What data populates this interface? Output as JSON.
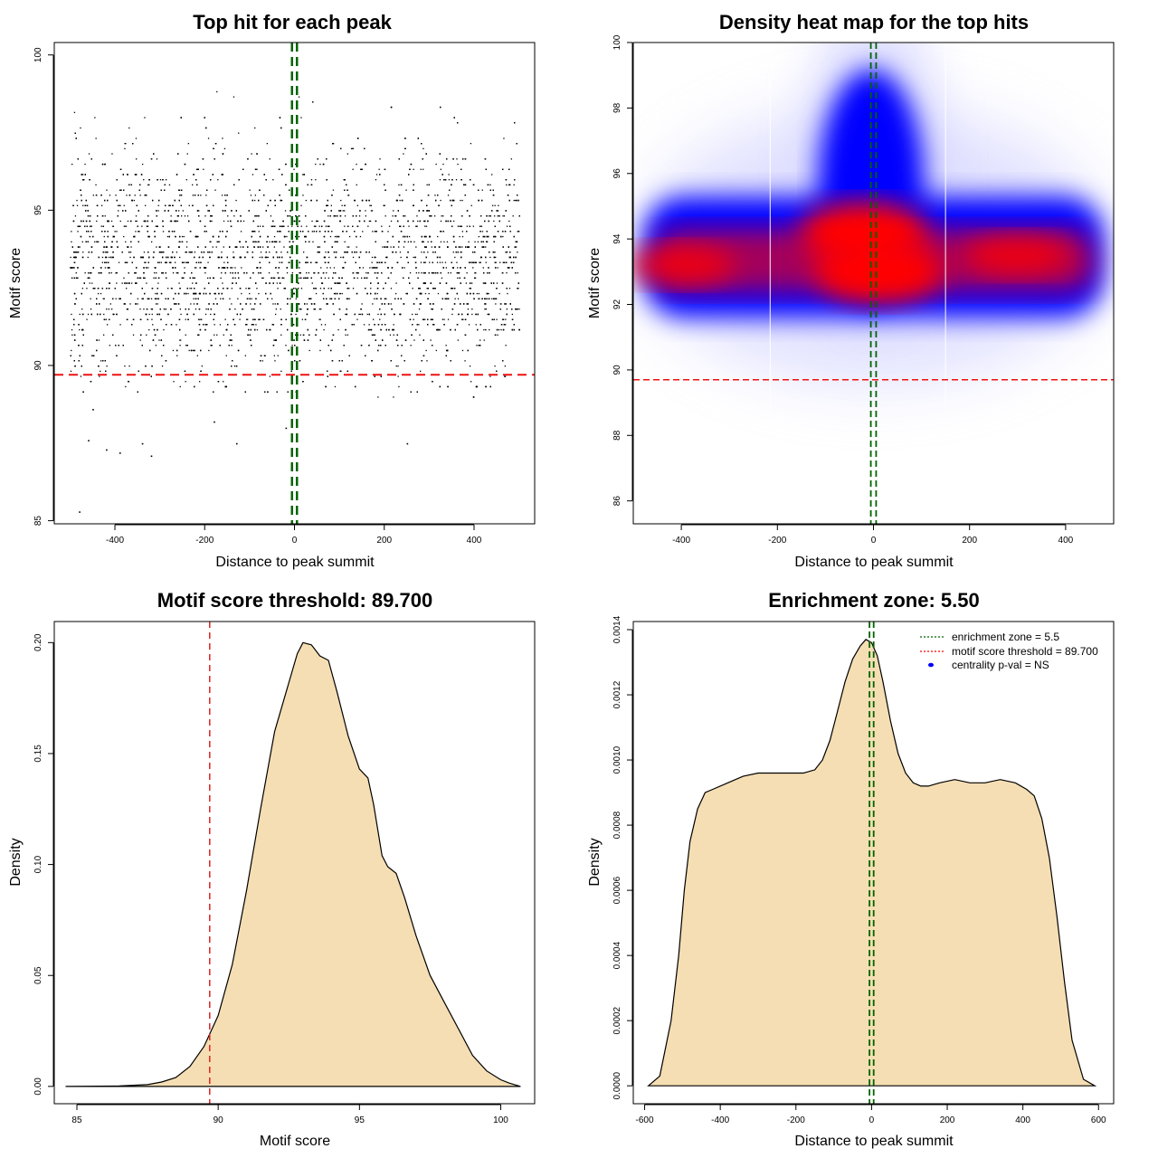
{
  "chart_data": [
    {
      "type": "scatter",
      "title": "Top hit for each peak",
      "xlabel": "Distance to peak summit",
      "ylabel": "Motif score",
      "xlim": [
        -535,
        535
      ],
      "ylim": [
        84.9,
        100.4
      ],
      "xticks": [
        "-400",
        "-200",
        "0",
        "200",
        "400"
      ],
      "xtick_values": [
        -400,
        -200,
        0,
        200,
        400
      ],
      "yticks": [
        "85",
        "90",
        "95",
        "100"
      ],
      "ytick_values": [
        85,
        90,
        95,
        100
      ],
      "points_approx": {
        "x_range": [
          -500,
          500
        ],
        "score_peak": 93.3,
        "score_range_dense": [
          88.8,
          100
        ],
        "outliers": [
          [
            -480,
            85.3
          ],
          [
            -460,
            87.6
          ],
          [
            -450,
            88.6
          ],
          [
            -420,
            87.3
          ],
          [
            -390,
            87.2
          ],
          [
            -340,
            87.5
          ],
          [
            -320,
            87.1
          ],
          [
            -180,
            88.2
          ],
          [
            -130,
            87.5
          ],
          [
            -20,
            88.0
          ],
          [
            250,
            87.5
          ]
        ]
      },
      "vlines": [
        -5.5,
        5.5
      ],
      "hline": 89.7
    },
    {
      "type": "heatmap",
      "title": "Density heat map for the top hits",
      "xlabel": "Distance to peak summit",
      "ylabel": "Motif score",
      "xlim": [
        -500,
        500
      ],
      "ylim": [
        85.3,
        100.0
      ],
      "xticks": [
        "-400",
        "-200",
        "0",
        "200",
        "400"
      ],
      "xtick_values": [
        -400,
        -200,
        0,
        200,
        400
      ],
      "yticks": [
        "86",
        "88",
        "90",
        "92",
        "94",
        "96",
        "98",
        "100"
      ],
      "ytick_values": [
        86,
        88,
        90,
        92,
        94,
        96,
        98,
        100
      ],
      "density_peaks": [
        [
          -20,
          94.2
        ],
        [
          10,
          93.0
        ],
        [
          -400,
          93.2
        ],
        [
          300,
          93.5
        ]
      ],
      "colors": [
        "#ffffff",
        "#0000ff",
        "#ff0000"
      ],
      "vlines": [
        -5.5,
        5.5
      ],
      "hline": 89.7
    },
    {
      "type": "area",
      "title": "Motif score threshold: 89.700",
      "xlabel": "Motif score",
      "ylabel": "Density",
      "xlim": [
        84.2,
        101.2
      ],
      "ylim": [
        -0.0078,
        0.2095
      ],
      "xticks": [
        "85",
        "90",
        "95",
        "100"
      ],
      "xtick_values": [
        85,
        90,
        95,
        100
      ],
      "yticks": [
        "0.00",
        "0.05",
        "0.10",
        "0.15",
        "0.20"
      ],
      "ytick_values": [
        0,
        0.05,
        0.1,
        0.15,
        0.2
      ],
      "x": [
        84.6,
        86.5,
        87.5,
        88.0,
        88.5,
        89.0,
        89.5,
        90.0,
        90.5,
        91.0,
        91.5,
        92.0,
        92.5,
        92.8,
        93.0,
        93.3,
        93.6,
        93.9,
        94.2,
        94.6,
        95.0,
        95.3,
        95.5,
        95.8,
        96.0,
        96.3,
        96.6,
        97.0,
        97.5,
        98.0,
        98.5,
        99.0,
        99.5,
        100.0,
        100.3,
        100.7
      ],
      "values": [
        0.0,
        0.0002,
        0.0008,
        0.002,
        0.004,
        0.009,
        0.018,
        0.032,
        0.055,
        0.088,
        0.125,
        0.16,
        0.182,
        0.195,
        0.2,
        0.199,
        0.194,
        0.192,
        0.178,
        0.158,
        0.143,
        0.139,
        0.127,
        0.104,
        0.099,
        0.096,
        0.085,
        0.068,
        0.05,
        0.038,
        0.026,
        0.014,
        0.007,
        0.003,
        0.0015,
        0.0
      ],
      "fill": "#F5DEB3",
      "vline": 89.7
    },
    {
      "type": "area",
      "title": "Enrichment zone: 5.50",
      "xlabel": "Distance to peak summit",
      "ylabel": "Density",
      "xlim": [
        -630,
        640
      ],
      "ylim": [
        -5.5e-05,
        0.001425
      ],
      "xticks": [
        "-600",
        "-400",
        "-200",
        "0",
        "200",
        "400",
        "600"
      ],
      "xtick_values": [
        -600,
        -400,
        -200,
        0,
        200,
        400,
        600
      ],
      "yticks": [
        "0.0000",
        "0.0002",
        "0.0004",
        "0.0006",
        "0.0008",
        "0.0010",
        "0.0012",
        "0.0014"
      ],
      "ytick_values": [
        0,
        0.0002,
        0.0004,
        0.0006,
        0.0008,
        0.001,
        0.0012,
        0.0014
      ],
      "x": [
        -590,
        -560,
        -530,
        -510,
        -495,
        -480,
        -460,
        -440,
        -420,
        -380,
        -340,
        -300,
        -260,
        -220,
        -180,
        -150,
        -130,
        -110,
        -90,
        -70,
        -50,
        -30,
        -15,
        0,
        15,
        30,
        50,
        70,
        90,
        110,
        130,
        150,
        180,
        220,
        260,
        300,
        340,
        380,
        410,
        430,
        450,
        470,
        490,
        510,
        530,
        560,
        590
      ],
      "values": [
        0.0,
        3e-05,
        0.0002,
        0.0004,
        0.0006,
        0.00075,
        0.00085,
        0.0009,
        0.00091,
        0.00093,
        0.00095,
        0.00096,
        0.00096,
        0.00096,
        0.00096,
        0.00097,
        0.001,
        0.00106,
        0.00115,
        0.00124,
        0.00131,
        0.00135,
        0.00137,
        0.00136,
        0.00132,
        0.00124,
        0.00112,
        0.00102,
        0.00096,
        0.00093,
        0.00092,
        0.00092,
        0.00093,
        0.00094,
        0.00093,
        0.00093,
        0.00094,
        0.00093,
        0.00091,
        0.00089,
        0.00082,
        0.0007,
        0.00052,
        0.00032,
        0.00014,
        2e-05,
        0.0
      ],
      "fill": "#F5DEB3",
      "vlines": [
        -5.5,
        5.5
      ],
      "legend": [
        {
          "label": "enrichment zone = 5.5",
          "color": "#006400",
          "style": "dotted"
        },
        {
          "label": "motif score threshold = 89.700",
          "color": "#ff0000",
          "style": "dotted"
        },
        {
          "label": "centrality p-val = NS",
          "color": "#0000ff",
          "style": "point"
        }
      ],
      "legend_position": "top-right"
    }
  ]
}
